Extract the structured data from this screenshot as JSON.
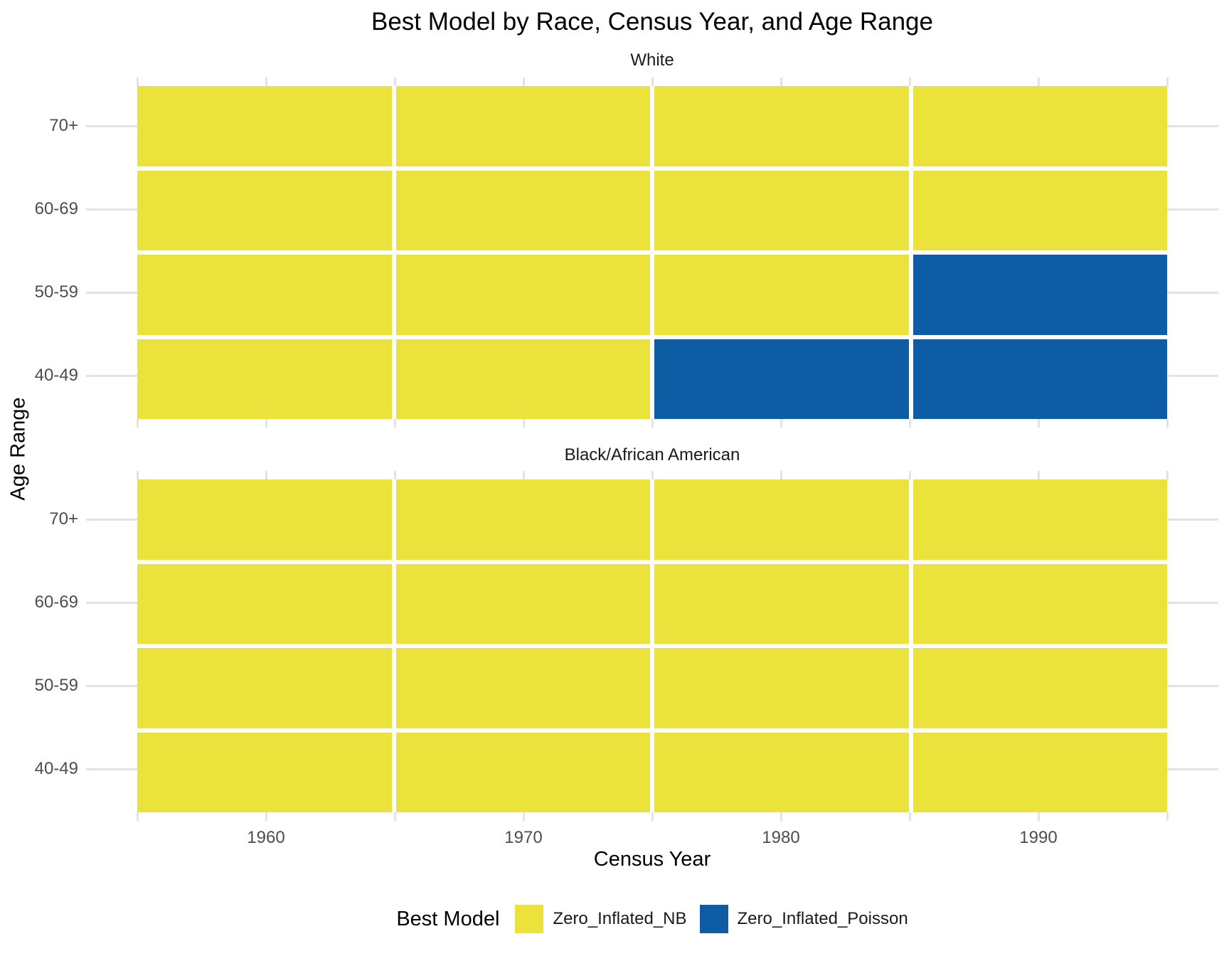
{
  "chart_data": {
    "type": "heatmap",
    "title": "Best Model by Race, Census Year, and Age Range",
    "xlabel": "Census Year",
    "ylabel": "Age Range",
    "x_categories": [
      "1960",
      "1970",
      "1980",
      "1990"
    ],
    "y_categories_top_to_bottom": [
      "70+",
      "60-69",
      "50-59",
      "40-49"
    ],
    "grid": true,
    "legend_position": "bottom",
    "legend": {
      "title": "Best Model",
      "items": [
        {
          "label": "Zero_Inflated_NB",
          "color": "#ebe23b"
        },
        {
          "label": "Zero_Inflated_Poisson",
          "color": "#0e5ca4"
        }
      ]
    },
    "facets": [
      {
        "label": "White",
        "rows": [
          {
            "age_range": "70+",
            "values": [
              "Zero_Inflated_NB",
              "Zero_Inflated_NB",
              "Zero_Inflated_NB",
              "Zero_Inflated_NB"
            ]
          },
          {
            "age_range": "60-69",
            "values": [
              "Zero_Inflated_NB",
              "Zero_Inflated_NB",
              "Zero_Inflated_NB",
              "Zero_Inflated_NB"
            ]
          },
          {
            "age_range": "50-59",
            "values": [
              "Zero_Inflated_NB",
              "Zero_Inflated_NB",
              "Zero_Inflated_NB",
              "Zero_Inflated_Poisson"
            ]
          },
          {
            "age_range": "40-49",
            "values": [
              "Zero_Inflated_NB",
              "Zero_Inflated_NB",
              "Zero_Inflated_Poisson",
              "Zero_Inflated_Poisson"
            ]
          }
        ]
      },
      {
        "label": "Black/African American",
        "rows": [
          {
            "age_range": "70+",
            "values": [
              "Zero_Inflated_NB",
              "Zero_Inflated_NB",
              "Zero_Inflated_NB",
              "Zero_Inflated_NB"
            ]
          },
          {
            "age_range": "60-69",
            "values": [
              "Zero_Inflated_NB",
              "Zero_Inflated_NB",
              "Zero_Inflated_NB",
              "Zero_Inflated_NB"
            ]
          },
          {
            "age_range": "50-59",
            "values": [
              "Zero_Inflated_NB",
              "Zero_Inflated_NB",
              "Zero_Inflated_NB",
              "Zero_Inflated_NB"
            ]
          },
          {
            "age_range": "40-49",
            "values": [
              "Zero_Inflated_NB",
              "Zero_Inflated_NB",
              "Zero_Inflated_NB",
              "Zero_Inflated_NB"
            ]
          }
        ]
      }
    ]
  }
}
